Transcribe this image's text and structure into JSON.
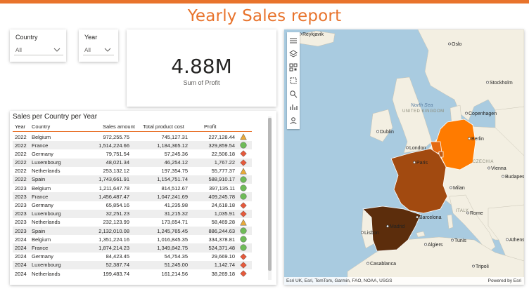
{
  "title": "Yearly Sales report",
  "colors": {
    "accent": "#e8732c",
    "good": "#6ebb57",
    "warn": "#e8a93a",
    "bad": "#e55a3c"
  },
  "slicers": {
    "country": {
      "label": "Country",
      "value": "All"
    },
    "year": {
      "label": "Year",
      "value": "All"
    }
  },
  "kpi": {
    "value": "4.88M",
    "label": "Sum of Profit"
  },
  "table": {
    "title": "Sales per Country per Year",
    "headers": {
      "year": "Year",
      "country": "Country",
      "sales": "Sales amount",
      "cost": "Total product cost",
      "profit": "Profit"
    },
    "rows": [
      {
        "year": "2022",
        "country": "Belgium",
        "sales": "972,255.75",
        "cost": "745,127.31",
        "profit": "227,128.44",
        "indicator": "warn"
      },
      {
        "year": "2022",
        "country": "France",
        "sales": "1,514,224.66",
        "cost": "1,184,365.12",
        "profit": "329,859.54",
        "indicator": "good"
      },
      {
        "year": "2022",
        "country": "Germany",
        "sales": "79,751.54",
        "cost": "57,245.36",
        "profit": "22,506.18",
        "indicator": "bad"
      },
      {
        "year": "2022",
        "country": "Luxembourg",
        "sales": "48,021.34",
        "cost": "46,254.12",
        "profit": "1,767.22",
        "indicator": "bad"
      },
      {
        "year": "2022",
        "country": "Netherlands",
        "sales": "253,132.12",
        "cost": "197,354.75",
        "profit": "55,777.37",
        "indicator": "warn"
      },
      {
        "year": "2022",
        "country": "Spain",
        "sales": "1,743,661.91",
        "cost": "1,154,751.74",
        "profit": "588,910.17",
        "indicator": "good"
      },
      {
        "year": "2023",
        "country": "Belgium",
        "sales": "1,211,647.78",
        "cost": "814,512.67",
        "profit": "397,135.11",
        "indicator": "good"
      },
      {
        "year": "2023",
        "country": "France",
        "sales": "1,456,487.47",
        "cost": "1,047,241.69",
        "profit": "409,245.78",
        "indicator": "good"
      },
      {
        "year": "2023",
        "country": "Germany",
        "sales": "65,854.16",
        "cost": "41,235.98",
        "profit": "24,618.18",
        "indicator": "bad"
      },
      {
        "year": "2023",
        "country": "Luxembourg",
        "sales": "32,251.23",
        "cost": "31,215.32",
        "profit": "1,035.91",
        "indicator": "bad"
      },
      {
        "year": "2023",
        "country": "Netherlands",
        "sales": "232,123.99",
        "cost": "173,654.71",
        "profit": "58,469.28",
        "indicator": "warn"
      },
      {
        "year": "2023",
        "country": "Spain",
        "sales": "2,132,010.08",
        "cost": "1,245,765.45",
        "profit": "886,244.63",
        "indicator": "good"
      },
      {
        "year": "2024",
        "country": "Belgium",
        "sales": "1,351,224.16",
        "cost": "1,016,845.35",
        "profit": "334,378.81",
        "indicator": "good"
      },
      {
        "year": "2024",
        "country": "France",
        "sales": "1,874,214.23",
        "cost": "1,349,842.75",
        "profit": "524,371.48",
        "indicator": "good"
      },
      {
        "year": "2024",
        "country": "Germany",
        "sales": "84,423.45",
        "cost": "54,754.35",
        "profit": "29,669.10",
        "indicator": "bad"
      },
      {
        "year": "2024",
        "country": "Luxembourg",
        "sales": "52,387.74",
        "cost": "51,245.00",
        "profit": "1,142.74",
        "indicator": "bad"
      },
      {
        "year": "2024",
        "country": "Netherlands",
        "sales": "199,483.74",
        "cost": "161,214.56",
        "profit": "38,269.18",
        "indicator": "bad"
      }
    ]
  },
  "map": {
    "sea_label": "North Sea",
    "cities": [
      "Reykjavik",
      "Oslo",
      "Stockholm",
      "Copenhagen",
      "Dublin",
      "London",
      "Berlin",
      "Paris",
      "Vienna",
      "Budapest",
      "Milan",
      "Rome",
      "Barcelona",
      "Madrid",
      "Lisbon",
      "Algiers",
      "Tunis",
      "Casablanca",
      "Tripoli",
      "Athens"
    ],
    "regions": [
      "UNITED KINGDOM",
      "CZECHIA",
      "ITALY"
    ],
    "country_colors": {
      "Spain": "#5c2d0c",
      "France": "#a24a10",
      "Germany": "#ff7b00",
      "Luxembourg": "#c25b10",
      "Belgium": "#e56910"
    },
    "attribution": "Esri UK, Esri, TomTom, Garmin, FAO, NOAA, USGS",
    "powered_by": "Powered by Esri",
    "tools": [
      "menu-icon",
      "layers-icon",
      "qr-icon",
      "select-icon",
      "search-icon",
      "chart-icon",
      "person-icon"
    ]
  }
}
